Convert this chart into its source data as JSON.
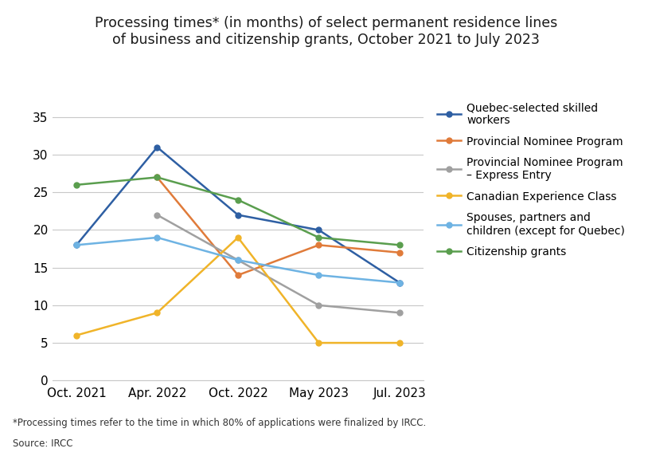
{
  "title_line1": "Processing times* (in months) of select permanent residence lines",
  "title_line2": "of business and citizenship grants, October 2021 to July 2023",
  "x_labels": [
    "Oct. 2021",
    "Apr. 2022",
    "Oct. 2022",
    "May 2023",
    "Jul. 2023"
  ],
  "series": [
    {
      "label": "Quebec-selected skilled\nworkers",
      "color": "#2E5FA3",
      "values": [
        18,
        31,
        22,
        20,
        13
      ]
    },
    {
      "label": "Provincial Nominee Program",
      "color": "#E07B3A",
      "values": [
        null,
        27,
        14,
        18,
        17
      ]
    },
    {
      "label": "Provincial Nominee Program\n– Express Entry",
      "color": "#A0A0A0",
      "values": [
        null,
        22,
        16,
        10,
        9
      ]
    },
    {
      "label": "Canadian Experience Class",
      "color": "#F0B429",
      "values": [
        6,
        9,
        19,
        5,
        5
      ]
    },
    {
      "label": "Spouses, partners and\nchildren (except for Quebec)",
      "color": "#6EB3E3",
      "values": [
        18,
        19,
        16,
        14,
        13
      ]
    },
    {
      "label": "Citizenship grants",
      "color": "#5A9E4E",
      "values": [
        26,
        27,
        24,
        19,
        18
      ]
    }
  ],
  "ylim": [
    0,
    37
  ],
  "yticks": [
    0,
    5,
    10,
    15,
    20,
    25,
    30,
    35
  ],
  "footnote": "*Processing times refer to the time in which 80% of applications were finalized by IRCC.",
  "source": "Source: IRCC",
  "background_color": "#FFFFFF",
  "grid_color": "#C8C8C8",
  "title_fontsize": 12.5,
  "axis_fontsize": 11,
  "legend_fontsize": 10,
  "footnote_fontsize": 8.5
}
